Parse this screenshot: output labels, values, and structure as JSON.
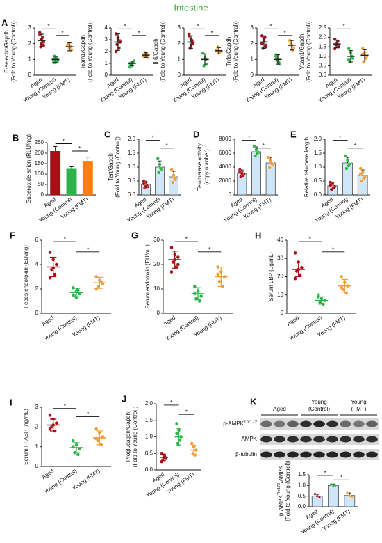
{
  "title": "Intestine",
  "blot": {
    "groups": [
      [
        "Aged"
      ],
      [
        "Young",
        "(Control)"
      ],
      [
        "Young",
        "(FMT)"
      ]
    ],
    "rows": [
      [
        "p-AMPK",
        "Thr172"
      ],
      [
        "AMPK"
      ],
      [
        "β-tubulin"
      ]
    ]
  },
  "chart_data": [
    {
      "panel": "A",
      "type": "dot",
      "ylabel": [
        [
          "E-selectin/Gapdh"
        ],
        [
          "(Fold to Young (Control))"
        ]
      ],
      "categories": [
        "Aged",
        "Young (Control)",
        "Young (FMT)"
      ],
      "colors": [
        "#a50f15",
        "#2db34a",
        "#f39c33"
      ],
      "errorbar_color": "#222",
      "means": [
        2.2,
        1.0,
        1.8
      ],
      "errors": [
        0.4,
        0.2,
        0.25
      ],
      "points": [
        [
          2.6,
          2.3,
          2.1,
          1.8,
          2.4,
          2.7,
          2.0,
          1.9
        ],
        [
          1.0,
          0.8,
          0.9,
          1.2,
          1.1,
          0.8
        ],
        [
          1.9,
          1.7,
          1.6,
          2.0,
          1.8
        ]
      ],
      "ylim": [
        0,
        3
      ],
      "yticks": [
        0,
        1,
        2,
        3
      ],
      "significance": [
        "*",
        "*"
      ]
    },
    {
      "type": "dot",
      "ylabel": [
        [
          "Icam1/Gapdh"
        ],
        [
          "(Fold to Young (Control))"
        ]
      ],
      "categories": [
        "Aged",
        "Young (Control)",
        "Young (FMT)"
      ],
      "colors": [
        "#a50f15",
        "#2db34a",
        "#f39c33"
      ],
      "errorbar_color": "#222",
      "means": [
        2.8,
        1.0,
        1.7
      ],
      "errors": [
        0.7,
        0.2,
        0.2
      ],
      "points": [
        [
          3.5,
          3.2,
          2.9,
          2.6,
          2.3,
          2.0,
          3.0,
          2.8
        ],
        [
          1.0,
          0.8,
          1.2,
          0.9,
          1.1,
          0.7
        ],
        [
          1.6,
          1.8,
          1.5,
          1.9,
          1.7
        ]
      ],
      "ylim": [
        0,
        4
      ],
      "yticks": [
        0,
        1,
        2,
        3,
        4
      ],
      "significance": [
        "*",
        "*"
      ]
    },
    {
      "type": "dot",
      "ylabel": [
        [
          "Il-6/Gapdh"
        ],
        [
          "(Fold to Young (Control))"
        ]
      ],
      "categories": [
        "Aged",
        "Young (Control)",
        "Young (FMT)"
      ],
      "colors": [
        "#a50f15",
        "#2db34a",
        "#f39c33"
      ],
      "errorbar_color": "#222",
      "means": [
        2.1,
        1.0,
        1.55
      ],
      "errors": [
        0.4,
        0.35,
        0.2
      ],
      "points": [
        [
          2.5,
          2.3,
          2.0,
          1.7,
          2.2,
          2.6,
          1.9,
          2.0
        ],
        [
          1.4,
          1.1,
          0.7,
          0.6,
          1.0
        ],
        [
          1.6,
          1.4,
          1.5,
          1.8,
          1.5
        ]
      ],
      "ylim": [
        0,
        3
      ],
      "yticks": [
        0,
        1,
        2,
        3
      ],
      "significance": [
        "*",
        "*"
      ]
    },
    {
      "type": "dot",
      "ylabel": [
        [
          "Tnfα/Gapdh"
        ],
        [
          "(Fold to Young (Control))"
        ]
      ],
      "categories": [
        "Aged",
        "Young (Control)",
        "Young (FMT)"
      ],
      "colors": [
        "#a50f15",
        "#2db34a",
        "#f39c33"
      ],
      "errorbar_color": "#222",
      "means": [
        2.1,
        1.0,
        1.9
      ],
      "errors": [
        0.4,
        0.3,
        0.3
      ],
      "points": [
        [
          2.5,
          2.2,
          1.9,
          1.7,
          2.4,
          2.0,
          2.3,
          1.8
        ],
        [
          1.3,
          0.9,
          0.7,
          1.1,
          0.8,
          1.2
        ],
        [
          2.2,
          1.9,
          1.7,
          2.0,
          1.6
        ]
      ],
      "ylim": [
        0,
        3
      ],
      "yticks": [
        0,
        1,
        2,
        3
      ],
      "significance": [
        "*",
        "*"
      ]
    },
    {
      "type": "dot",
      "ylabel": [
        [
          "Vcam1/Gapdh"
        ],
        [
          "(Fold to Young (Control))"
        ]
      ],
      "categories": [
        "Aged",
        "Young (Control)",
        "Young (FMT)"
      ],
      "colors": [
        "#a50f15",
        "#2db34a",
        "#f39c33"
      ],
      "errorbar_color": "#222",
      "means": [
        1.65,
        1.0,
        1.05
      ],
      "errors": [
        0.2,
        0.3,
        0.3
      ],
      "points": [
        [
          1.9,
          1.7,
          1.5,
          1.6,
          1.8,
          1.4
        ],
        [
          1.4,
          1.2,
          0.9,
          0.7,
          1.0,
          0.8
        ],
        [
          1.4,
          1.2,
          1.0,
          0.7,
          0.9,
          1.1
        ]
      ],
      "ylim": [
        0,
        2.5
      ],
      "yticks": [
        {
          "value": 0,
          "label": "0.0"
        },
        {
          "value": 0.5,
          "label": "0.5"
        },
        {
          "value": 1,
          "label": "1.0"
        },
        {
          "value": 1.5,
          "label": "1.5"
        },
        {
          "value": 2,
          "label": "2.0"
        },
        {
          "value": 2.5,
          "label": "2.5"
        }
      ],
      "significance": [
        "*"
      ]
    },
    {
      "panel": "B",
      "type": "bar",
      "ylabel": [
        [
          "Superoxide anion (RLU/mg)"
        ]
      ],
      "categories": [
        "Aged",
        "Young (Control)",
        "Young (FMT)"
      ],
      "colors": [
        "#a50f15",
        "#2db34a",
        "#ff7f0e"
      ],
      "means": [
        210,
        125,
        163
      ],
      "errors": [
        22,
        10,
        18
      ],
      "ylim": [
        0,
        250
      ],
      "yticks": [
        0,
        50,
        100,
        150,
        200,
        250
      ],
      "significance": [
        "*",
        "*"
      ]
    },
    {
      "panel": "C",
      "type": "bar",
      "ylabel": [
        [
          "Tert/Gapdh"
        ],
        [
          "(Fold to Young (Control))"
        ]
      ],
      "categories": [
        "Aged",
        "Young (Control)",
        "Young (FMT)"
      ],
      "colors": [
        "#a50f15",
        "#2db34a",
        "#f39c33"
      ],
      "bar_color": "#cfe6f8",
      "means": [
        0.38,
        1.0,
        0.65
      ],
      "errors": [
        0.12,
        0.22,
        0.2
      ],
      "points": [
        [
          0.5,
          0.45,
          0.3,
          0.25,
          0.35,
          0.4,
          0.3
        ],
        [
          1.3,
          1.1,
          0.9,
          0.8,
          0.95
        ],
        [
          0.9,
          0.7,
          0.55,
          0.45,
          0.6
        ]
      ],
      "ylim": [
        0,
        2
      ],
      "yticks": [
        {
          "value": 0,
          "label": "0.0"
        },
        {
          "value": 0.5,
          "label": "0.5"
        },
        {
          "value": 1,
          "label": "1.0"
        },
        {
          "value": 1.5,
          "label": "1.5"
        },
        {
          "value": 2,
          "label": "2.0"
        }
      ],
      "significance": [
        "*",
        "*"
      ]
    },
    {
      "panel": "D",
      "type": "bar",
      "ylabel": [
        [
          "Telomerase activity"
        ],
        [
          "(copy number)"
        ]
      ],
      "categories": [
        "Aged",
        "Young (Control)",
        "Young (FMT)"
      ],
      "colors": [
        "#a50f15",
        "#2db34a",
        "#f39c33"
      ],
      "bar_color": "#cfe6f8",
      "means": [
        3100,
        6200,
        4600
      ],
      "errors": [
        500,
        700,
        800
      ],
      "points": [
        [
          3600,
          3400,
          3000,
          2600,
          2800,
          3300,
          3100
        ],
        [
          7000,
          6500,
          6100,
          5600,
          5900
        ],
        [
          5400,
          4900,
          4400,
          3900,
          4500
        ]
      ],
      "ylim": [
        0,
        8000
      ],
      "yticks": [
        0,
        2000,
        4000,
        6000,
        8000
      ],
      "significance": [
        "*",
        "*"
      ]
    },
    {
      "panel": "E",
      "type": "bar",
      "ylabel": [
        [
          "Relative telomere length"
        ]
      ],
      "categories": [
        "Aged",
        "Young (Control)",
        "Young (FMT)"
      ],
      "colors": [
        "#a50f15",
        "#2db34a",
        "#f39c33"
      ],
      "bar_color": "#cfe6f8",
      "means": [
        0.33,
        1.15,
        0.7
      ],
      "errors": [
        0.12,
        0.2,
        0.2
      ],
      "points": [
        [
          0.45,
          0.4,
          0.3,
          0.2,
          0.25,
          0.35
        ],
        [
          1.4,
          1.25,
          1.1,
          0.95,
          1.05
        ],
        [
          0.95,
          0.8,
          0.65,
          0.5,
          0.6,
          0.75
        ]
      ],
      "ylim": [
        0,
        2
      ],
      "yticks": [
        {
          "value": 0,
          "label": "0.0"
        },
        {
          "value": 0.5,
          "label": "0.5"
        },
        {
          "value": 1,
          "label": "1.0"
        },
        {
          "value": 1.5,
          "label": "1.5"
        },
        {
          "value": 2,
          "label": "2.0"
        }
      ],
      "significance": [
        "*",
        "*"
      ]
    },
    {
      "panel": "F",
      "type": "dot",
      "ylabel": [
        [
          "Feces endotoxin (EU/mg)"
        ]
      ],
      "categories": [
        "Aged",
        "Young (Control)",
        "Young (FMT)"
      ],
      "colors": [
        "#a50f15",
        "#2db34a",
        "#f39c33"
      ],
      "means": [
        3.8,
        1.7,
        2.5
      ],
      "errors": [
        0.8,
        0.35,
        0.45
      ],
      "points": [
        [
          5.0,
          4.4,
          4.0,
          3.6,
          3.2,
          2.9,
          3.7
        ],
        [
          2.1,
          1.8,
          1.6,
          1.4,
          1.9,
          1.5,
          1.3
        ],
        [
          3.0,
          2.7,
          2.4,
          2.2,
          2.6,
          2.0
        ]
      ],
      "ylim": [
        0,
        6
      ],
      "yticks": [
        0,
        2,
        4,
        6
      ],
      "significance": [
        "*",
        "*"
      ]
    },
    {
      "panel": "G",
      "type": "dot",
      "ylabel": [
        [
          "Serum endotoxin (EU/mL)"
        ]
      ],
      "categories": [
        "Aged",
        "Young (Control)",
        "Young (FMT)"
      ],
      "colors": [
        "#a50f15",
        "#2db34a",
        "#f39c33"
      ],
      "means": [
        22,
        8,
        15
      ],
      "errors": [
        3.5,
        2.5,
        4
      ],
      "points": [
        [
          27,
          24,
          23,
          21,
          19,
          17,
          22,
          20
        ],
        [
          11,
          9,
          7,
          6,
          5,
          8
        ],
        [
          19,
          17,
          15,
          13,
          11,
          16
        ]
      ],
      "ylim": [
        0,
        30
      ],
      "yticks": [
        0,
        10,
        20,
        30
      ],
      "significance": [
        "*",
        "*"
      ]
    },
    {
      "panel": "H",
      "type": "dot",
      "ylabel": [
        [
          "Serum LBP (μg/mL)"
        ]
      ],
      "categories": [
        "Aged",
        "Young (Control)",
        "Young (FMT)"
      ],
      "colors": [
        "#a50f15",
        "#2db34a",
        "#f39c33"
      ],
      "means": [
        24,
        7,
        15
      ],
      "errors": [
        4,
        2,
        3.5
      ],
      "points": [
        [
          33,
          28,
          25,
          23,
          21,
          19,
          24
        ],
        [
          10,
          8,
          7,
          6,
          5,
          9
        ],
        [
          20,
          17,
          15,
          13,
          11,
          14
        ]
      ],
      "ylim": [
        0,
        40
      ],
      "yticks": [
        0,
        10,
        20,
        30,
        40
      ],
      "significance": [
        "*",
        "*"
      ]
    },
    {
      "panel": "I",
      "type": "dot",
      "ylabel": [
        [
          "Serum I-FABP (ng/mL)"
        ]
      ],
      "categories": [
        "Aged",
        "Young (Control)",
        "Young (FMT)"
      ],
      "colors": [
        "#a50f15",
        "#2db34a",
        "#f39c33"
      ],
      "means": [
        2.1,
        0.95,
        1.45
      ],
      "errors": [
        0.3,
        0.25,
        0.35
      ],
      "points": [
        [
          2.6,
          2.4,
          2.2,
          2.0,
          1.8,
          1.9,
          2.1
        ],
        [
          1.3,
          1.1,
          0.9,
          0.7,
          0.6,
          1.0
        ],
        [
          1.9,
          1.7,
          1.5,
          1.3,
          1.1,
          1.4
        ]
      ],
      "ylim": [
        0,
        3
      ],
      "yticks": [
        0,
        1,
        2,
        3
      ],
      "significance": [
        "*",
        "*"
      ]
    },
    {
      "panel": "J",
      "type": "dot",
      "ylabel": [
        [
          "Proglucagon/Gapdh"
        ],
        [
          "(Fold to Young (Control))"
        ]
      ],
      "categories": [
        "Aged",
        "Young (Control)",
        "Young (FMT)"
      ],
      "colors": [
        "#a50f15",
        "#2db34a",
        "#f39c33"
      ],
      "means": [
        0.38,
        1.0,
        0.6
      ],
      "errors": [
        0.1,
        0.25,
        0.15
      ],
      "points": [
        [
          0.5,
          0.45,
          0.35,
          0.3,
          0.4,
          0.25,
          0.38
        ],
        [
          1.4,
          1.2,
          1.0,
          0.8,
          0.9,
          1.1
        ],
        [
          0.8,
          0.7,
          0.6,
          0.5,
          0.45
        ]
      ],
      "ylim": [
        0,
        2
      ],
      "yticks": [
        {
          "value": 0,
          "label": "0.0"
        },
        {
          "value": 0.5,
          "label": "0.5"
        },
        {
          "value": 1,
          "label": "1.0"
        },
        {
          "value": 1.5,
          "label": "1.5"
        },
        {
          "value": 2,
          "label": "2.0"
        }
      ],
      "significance": [
        "*",
        "*"
      ]
    },
    {
      "panel": "K",
      "type": "bar",
      "ylabel": [
        [
          "p-AMPK",
          "Thr172",
          "/AMPK"
        ],
        [
          "(Fold to Young (Control))"
        ]
      ],
      "categories": [
        "Aged",
        "Young (Control)",
        "Young (FMT)"
      ],
      "colors": [
        "#a50f15",
        "#2db34a",
        "#f39c33"
      ],
      "bar_color": "#cfe6f8",
      "means": [
        0.5,
        1.0,
        0.53
      ],
      "errors": [
        0.08,
        0.07,
        0.12
      ],
      "points": [
        [
          0.6,
          0.5,
          0.45
        ],
        [
          1.05,
          0.98,
          1.0
        ],
        [
          0.65,
          0.5,
          0.45
        ]
      ],
      "ylim": [
        0,
        1.5
      ],
      "yticks": [
        {
          "value": 0,
          "label": "0.0"
        },
        {
          "value": 0.5,
          "label": "0.5"
        },
        {
          "value": 1,
          "label": "1.0"
        },
        {
          "value": 1.5,
          "label": "1.5"
        }
      ],
      "significance": [
        "*",
        "*"
      ]
    }
  ]
}
